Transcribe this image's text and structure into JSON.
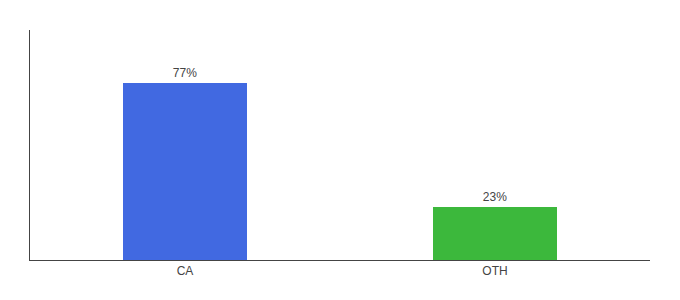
{
  "chart_data": {
    "type": "bar",
    "categories": [
      "CA",
      "OTH"
    ],
    "values": [
      77,
      23
    ],
    "value_labels": [
      "77%",
      "23%"
    ],
    "colors": [
      "#4169e1",
      "#3cb83c"
    ],
    "ylim": [
      0,
      100
    ],
    "data_labels": true,
    "tick_labels": "x",
    "grid": false
  }
}
